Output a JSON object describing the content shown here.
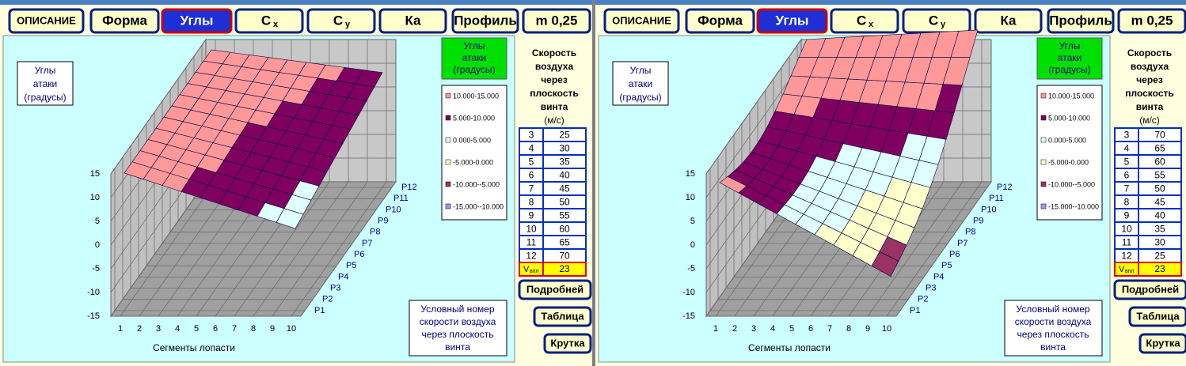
{
  "panels": [
    {
      "buttons": [
        {
          "text": "ОПИСАНИЕ"
        },
        {
          "text": "Форма"
        },
        {
          "text": "Углы",
          "active": true
        },
        {
          "text": "C",
          "sub": "x"
        },
        {
          "text": "C",
          "sub": "y"
        },
        {
          "text": "Ка"
        },
        {
          "text": "Профиль"
        },
        {
          "text": "m 0,25"
        }
      ],
      "chart_label": [
        "Углы",
        "атаки",
        "(градусы)"
      ],
      "legend_title": [
        "Углы",
        "атаки",
        "(градусы)"
      ],
      "legend": [
        {
          "label": "10.000-15.000",
          "color": "#ff9999"
        },
        {
          "label": "5.000-10.000",
          "color": "#800060"
        },
        {
          "label": "0.000-5.000",
          "color": "#e0ffff"
        },
        {
          "label": "-5.000-0.000",
          "color": "#ffffcc"
        },
        {
          "label": "-10.000--5.000",
          "color": "#993366"
        },
        {
          "label": "-15.000--10.000",
          "color": "#9999ff"
        }
      ],
      "z_ticks": [
        15,
        10,
        5,
        0,
        -5,
        -10,
        -15
      ],
      "x_ticks": [
        1,
        2,
        3,
        4,
        5,
        6,
        7,
        8,
        9,
        10
      ],
      "depth_labels": [
        "P1",
        "P2",
        "P3",
        "P4",
        "P5",
        "P6",
        "P7",
        "P8",
        "P9",
        "P10",
        "P11",
        "P12"
      ],
      "x_title": "Сегменты лопасти",
      "note": [
        "Условный номер",
        "скорости воздуха",
        "через плоскость",
        "винта"
      ],
      "speed_title": [
        "Скорость",
        "воздуха",
        "через",
        "плоскость",
        "винта",
        "(м/с)"
      ],
      "rows": [
        [
          3,
          25
        ],
        [
          4,
          30
        ],
        [
          5,
          35
        ],
        [
          6,
          40
        ],
        [
          7,
          45
        ],
        [
          8,
          50
        ],
        [
          9,
          55
        ],
        [
          10,
          60
        ],
        [
          11,
          65
        ],
        [
          12,
          70
        ]
      ],
      "vrow": {
        "label": "V",
        "sub": "впл",
        "value": 23
      },
      "side_buttons": [
        "Подробней",
        "Таблица",
        "Крутка"
      ]
    },
    {
      "buttons": [
        {
          "text": "ОПИСАНИЕ"
        },
        {
          "text": "Форма"
        },
        {
          "text": "Углы",
          "active": true
        },
        {
          "text": "C",
          "sub": "x"
        },
        {
          "text": "C",
          "sub": "y"
        },
        {
          "text": "Ка"
        },
        {
          "text": "Профиль"
        },
        {
          "text": "m 0,25"
        }
      ],
      "chart_label": [
        "Углы",
        "атаки",
        "(градусы)"
      ],
      "legend_title": [
        "Углы",
        "атаки",
        "(градусы)"
      ],
      "legend": [
        {
          "label": "10.000-15.000",
          "color": "#ff9999"
        },
        {
          "label": "5.000-10.000",
          "color": "#800060"
        },
        {
          "label": "0.000-5.000",
          "color": "#e0ffff"
        },
        {
          "label": "-5.000-0.000",
          "color": "#ffffcc"
        },
        {
          "label": "-10.000--5.000",
          "color": "#993366"
        },
        {
          "label": "-15.000--10.000",
          "color": "#9999ff"
        }
      ],
      "z_ticks": [
        15,
        10,
        5,
        0,
        -5,
        -10,
        -15
      ],
      "x_ticks": [
        1,
        2,
        3,
        4,
        5,
        6,
        7,
        8,
        9,
        10
      ],
      "depth_labels": [
        "P1",
        "P2",
        "P3",
        "P4",
        "P5",
        "P6",
        "P7",
        "P8",
        "P9",
        "P10",
        "P11",
        "P12"
      ],
      "x_title": "Сегменты лопасти",
      "note": [
        "Условный номер",
        "скорости воздуха",
        "через плоскость",
        "винта"
      ],
      "speed_title": [
        "Скорость",
        "воздуха",
        "через",
        "плоскость",
        "винта",
        "(м/с)"
      ],
      "rows": [
        [
          3,
          70
        ],
        [
          4,
          65
        ],
        [
          5,
          60
        ],
        [
          6,
          55
        ],
        [
          7,
          50
        ],
        [
          8,
          45
        ],
        [
          9,
          40
        ],
        [
          10,
          35
        ],
        [
          11,
          30
        ],
        [
          12,
          25
        ]
      ],
      "vrow": {
        "label": "V",
        "sub": "впл",
        "value": 23
      },
      "side_buttons": [
        "Подробней",
        "Таблица",
        "Крутка"
      ]
    }
  ]
}
